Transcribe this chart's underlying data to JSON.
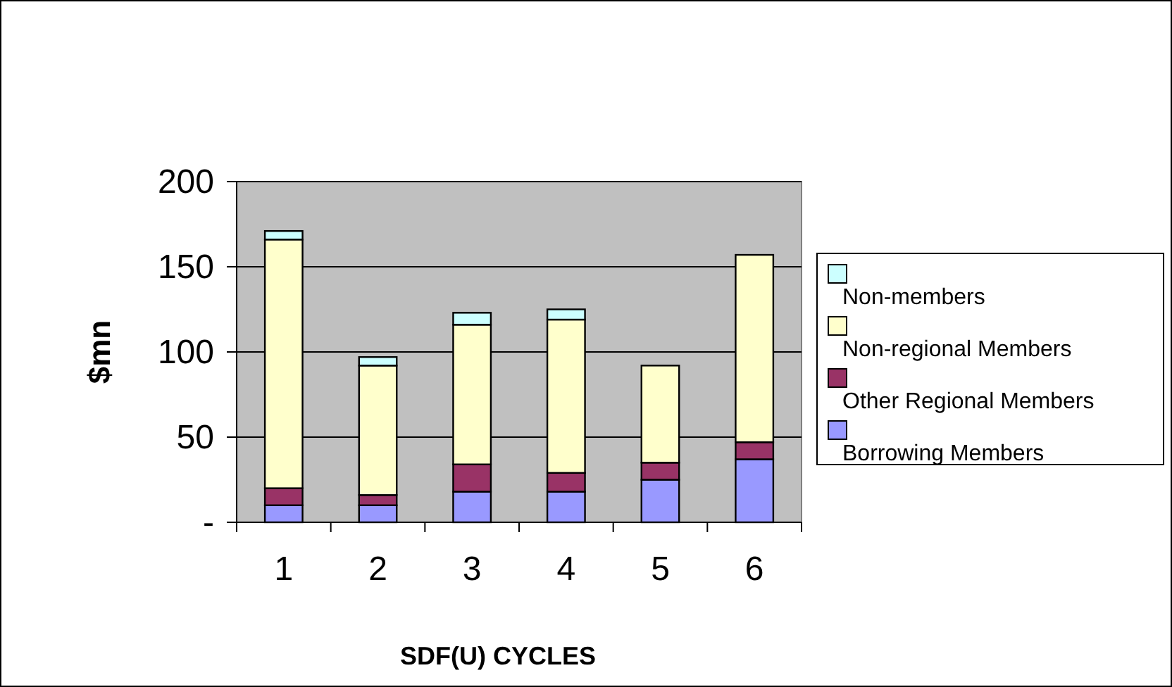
{
  "chart_data": {
    "type": "bar",
    "stacked": true,
    "xlabel": "SDF(U) CYCLES",
    "ylabel": "$mn",
    "categories": [
      "1",
      "2",
      "3",
      "4",
      "5",
      "6"
    ],
    "series": [
      {
        "name": "Borrowing Members",
        "color": "#9999ff",
        "values": [
          10,
          10,
          18,
          18,
          25,
          37
        ]
      },
      {
        "name": "Other Regional Members",
        "color": "#993366",
        "values": [
          10,
          6,
          16,
          11,
          10,
          10
        ]
      },
      {
        "name": "Non-regional Members",
        "color": "#ffffcc",
        "values": [
          146,
          76,
          82,
          90,
          57,
          110
        ]
      },
      {
        "name": "Non-members",
        "color": "#ccffff",
        "values": [
          5,
          5,
          7,
          6,
          0,
          0
        ]
      }
    ],
    "ylim": [
      0,
      200
    ],
    "yticks": [
      {
        "value": 0,
        "label": "-"
      },
      50,
      100,
      150,
      200
    ],
    "grid": "y",
    "legend": "right"
  }
}
